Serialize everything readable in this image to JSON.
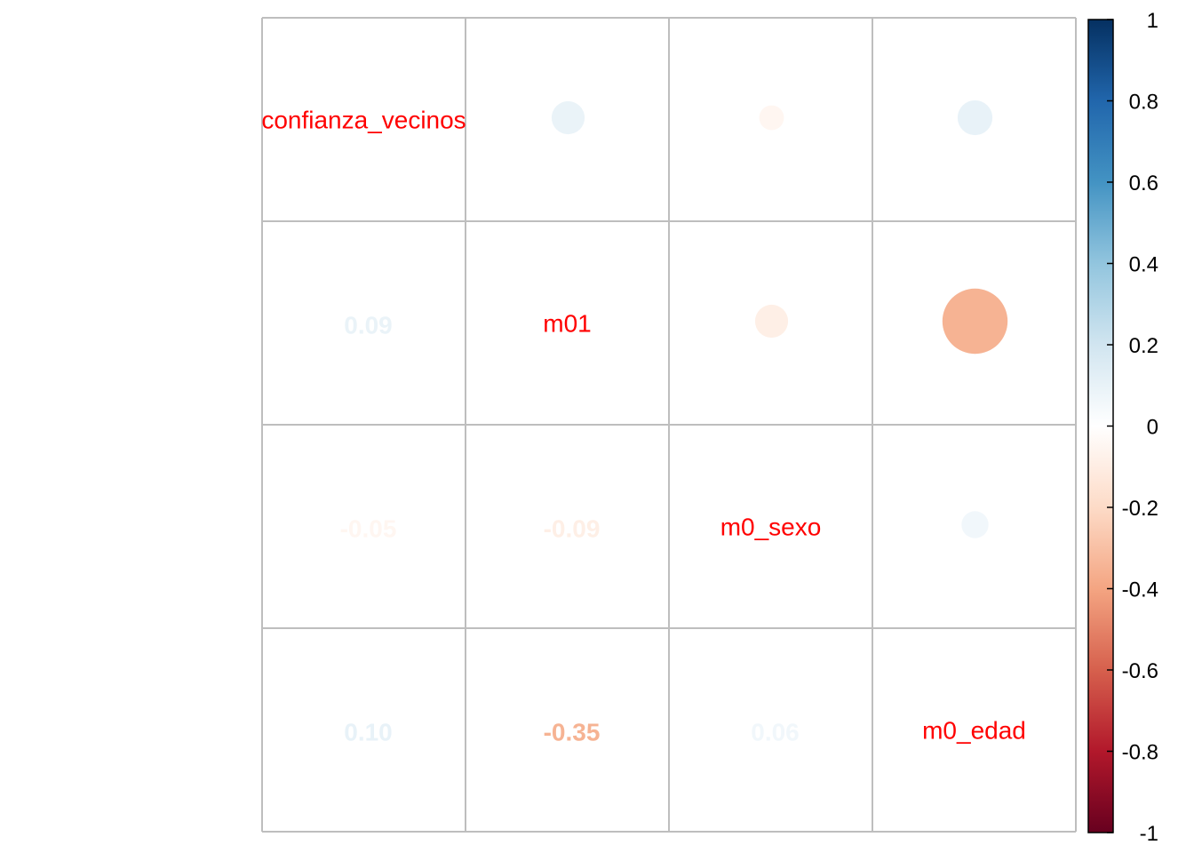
{
  "chart_data": {
    "type": "heatmap",
    "variables": [
      "confianza_vecinos",
      "m01",
      "m0_sexo",
      "m0_edad"
    ],
    "matrix": [
      [
        1,
        0.09,
        -0.05,
        0.1
      ],
      [
        0.09,
        1,
        -0.09,
        -0.35
      ],
      [
        -0.05,
        -0.09,
        1,
        0.06
      ],
      [
        0.1,
        -0.35,
        0.06,
        1
      ]
    ],
    "lower_labels": [
      {
        "row": 1,
        "col": 0,
        "text": "0.09"
      },
      {
        "row": 2,
        "col": 0,
        "text": "-0.05"
      },
      {
        "row": 2,
        "col": 1,
        "text": "-0.09"
      },
      {
        "row": 3,
        "col": 0,
        "text": "0.10"
      },
      {
        "row": 3,
        "col": 1,
        "text": "-0.35"
      },
      {
        "row": 3,
        "col": 2,
        "text": "0.06"
      }
    ],
    "colorbar": {
      "range": [
        -1,
        1
      ],
      "ticks": [
        "1",
        "0.8",
        "0.6",
        "0.4",
        "0.2",
        "0",
        "-0.2",
        "-0.4",
        "-0.6",
        "-0.8",
        "-1"
      ]
    },
    "colors": {
      "label": "#FF0000",
      "grid": "#BEBEBE",
      "palette": [
        "#67001F",
        "#B2182B",
        "#D6604D",
        "#F4A582",
        "#FDDBC7",
        "#FFFFFF",
        "#D1E5F0",
        "#92C5DE",
        "#4393C3",
        "#2166AC",
        "#053061"
      ]
    },
    "diagonal": "variable names",
    "upper": "circles",
    "lower": "coefficients",
    "legend_position": "right"
  }
}
